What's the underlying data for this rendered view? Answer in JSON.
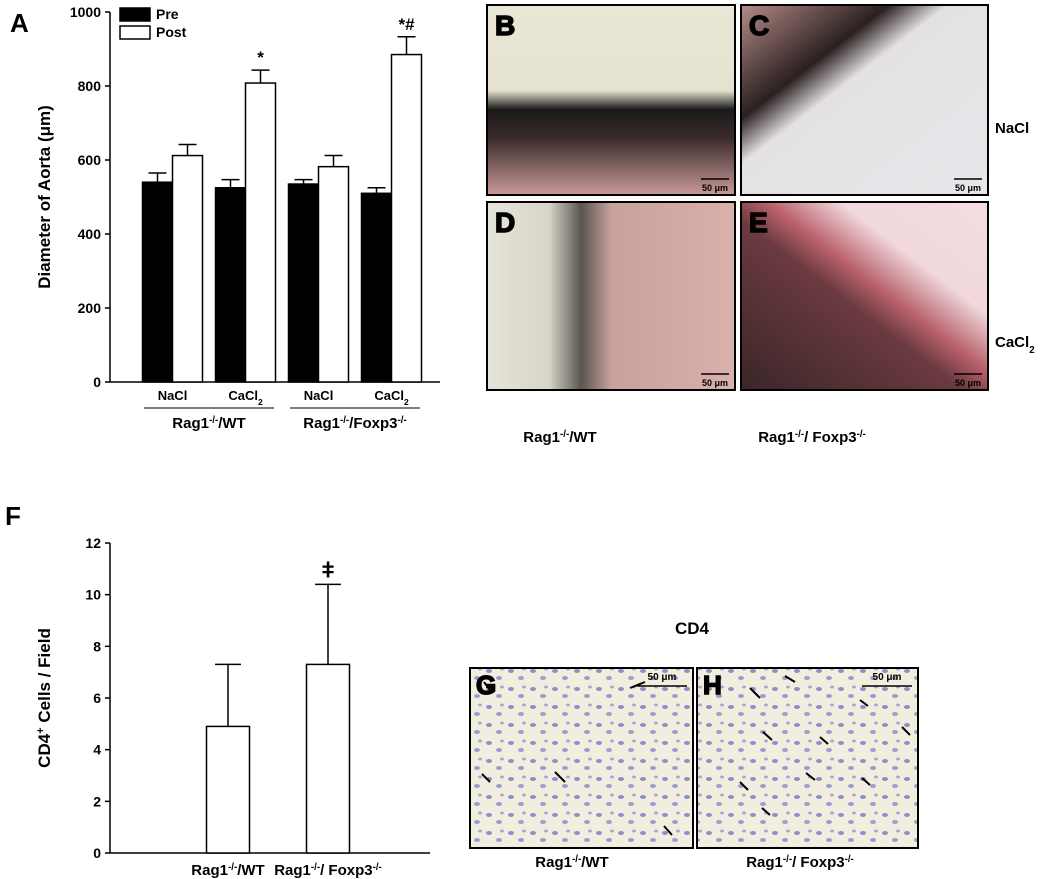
{
  "chart_data": [
    {
      "type": "bar",
      "panel_label": "A",
      "y_label": [
        {
          "t": "Diameter of Aorta (μm)"
        }
      ],
      "categories": [
        [
          {
            "t": "NaCl"
          }
        ],
        [
          {
            "t": "CaCl"
          },
          {
            "t": "2",
            "sub": true
          }
        ],
        [
          {
            "t": "NaCl"
          }
        ],
        [
          {
            "t": "CaCl"
          },
          {
            "t": "2",
            "sub": true
          }
        ]
      ],
      "group_labels": [
        [
          {
            "t": "Rag1"
          },
          {
            "t": "-/-",
            "sup": true
          },
          {
            "t": "/WT"
          }
        ],
        [
          {
            "t": "Rag1"
          },
          {
            "t": "-/-",
            "sup": true
          },
          {
            "t": "/Foxp3"
          },
          {
            "t": "-/-",
            "sup": true
          }
        ]
      ],
      "series": [
        {
          "name": "Pre",
          "color": "#000000",
          "values": [
            540,
            525,
            535,
            510
          ],
          "errors": [
            25,
            22,
            12,
            15
          ],
          "annotations": [
            null,
            null,
            null,
            null
          ]
        },
        {
          "name": "Post",
          "color": "#ffffff",
          "values": [
            612,
            808,
            582,
            885
          ],
          "errors": [
            30,
            35,
            30,
            48
          ],
          "annotations": [
            null,
            "*",
            null,
            "*#"
          ]
        }
      ],
      "ylim": [
        0,
        1000
      ],
      "yticks": [
        0,
        200,
        400,
        600,
        800,
        1000
      ],
      "legend": "top-left"
    },
    {
      "type": "bar",
      "panel_label": "F",
      "y_label": [
        {
          "t": "CD4"
        },
        {
          "t": "+",
          "sup": true
        },
        {
          "t": " Cells / Field"
        }
      ],
      "categories": [
        [
          {
            "t": "Rag1"
          },
          {
            "t": "-/-",
            "sup": true
          },
          {
            "t": "/WT"
          }
        ],
        [
          {
            "t": "Rag1"
          },
          {
            "t": "-/-",
            "sup": true
          },
          {
            "t": "/ Foxp3"
          },
          {
            "t": "-/-",
            "sup": true
          }
        ]
      ],
      "series": [
        {
          "color": "#ffffff",
          "values": [
            4.9,
            7.3
          ],
          "errors": [
            2.4,
            3.1
          ],
          "annotations": [
            null,
            "ǂ"
          ]
        }
      ],
      "ylim": [
        0,
        12
      ],
      "yticks": [
        0,
        2,
        4,
        6,
        8,
        10,
        12
      ]
    }
  ],
  "micrographs": {
    "panels": [
      {
        "letter": "B",
        "scale": "50 μm"
      },
      {
        "letter": "C",
        "scale": "50 μm"
      },
      {
        "letter": "D",
        "scale": "50 μm"
      },
      {
        "letter": "E",
        "scale": "50 μm"
      }
    ],
    "row_labels": [
      [
        {
          "t": "NaCl"
        }
      ],
      [
        {
          "t": "CaCl"
        },
        {
          "t": "2",
          "sub": true
        }
      ]
    ],
    "col_labels": [
      [
        {
          "t": "Rag1"
        },
        {
          "t": "-/-",
          "sup": true
        },
        {
          "t": "/WT"
        }
      ],
      [
        {
          "t": "Rag1"
        },
        {
          "t": "-/-",
          "sup": true
        },
        {
          "t": "/ Foxp3"
        },
        {
          "t": "-/-",
          "sup": true
        }
      ]
    ]
  },
  "cd4": {
    "title": "CD4",
    "panels": [
      {
        "letter": "G",
        "scale": "50 μm"
      },
      {
        "letter": "H",
        "scale": "50 μm"
      }
    ],
    "labels": [
      [
        {
          "t": "Rag1"
        },
        {
          "t": "-/-",
          "sup": true
        },
        {
          "t": "/WT"
        }
      ],
      [
        {
          "t": "Rag1"
        },
        {
          "t": "-/-",
          "sup": true
        },
        {
          "t": "/ Foxp3"
        },
        {
          "t": "-/-",
          "sup": true
        }
      ]
    ]
  }
}
